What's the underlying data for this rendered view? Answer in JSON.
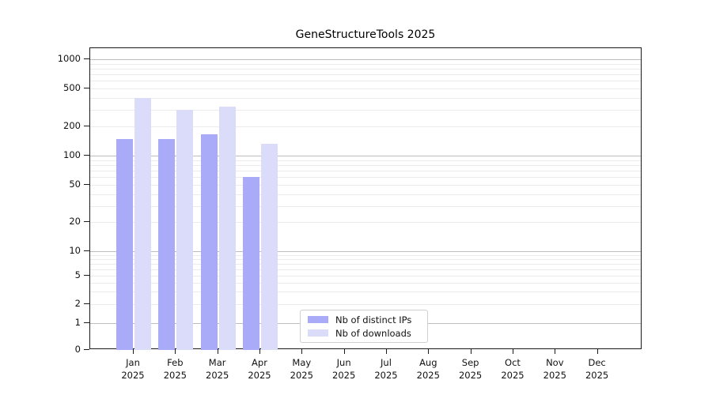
{
  "title": "GeneStructureTools 2025",
  "colors": {
    "distinct_ips": "#aaabf8",
    "downloads": "#dadcfa",
    "grid_major": "#bdbdbd",
    "grid_minor": "#ebebeb",
    "spine": "#1a1a1a"
  },
  "axes": {
    "y_tick_labels": [
      "1000",
      "500",
      "200",
      "100",
      "50",
      "20",
      "10",
      "5",
      "2",
      "1",
      "0"
    ],
    "x_year": "2025",
    "x_months": [
      "Jan",
      "Feb",
      "Mar",
      "Apr",
      "May",
      "Jun",
      "Jul",
      "Aug",
      "Sep",
      "Oct",
      "Nov",
      "Dec"
    ]
  },
  "legend": {
    "items": [
      {
        "label": "Nb of distinct IPs",
        "color": "#aaabf8"
      },
      {
        "label": "Nb of downloads",
        "color": "#dadcfa"
      }
    ]
  },
  "chart_data": {
    "type": "bar",
    "title": "GeneStructureTools 2025",
    "categories": [
      "Jan 2025",
      "Feb 2025",
      "Mar 2025",
      "Apr 2025",
      "May 2025",
      "Jun 2025",
      "Jul 2025",
      "Aug 2025",
      "Sep 2025",
      "Oct 2025",
      "Nov 2025",
      "Dec 2025"
    ],
    "series": [
      {
        "name": "Nb of distinct IPs",
        "color": "#aaabf8",
        "values": [
          150,
          148,
          166,
          60,
          null,
          null,
          null,
          null,
          null,
          null,
          null,
          null
        ]
      },
      {
        "name": "Nb of downloads",
        "color": "#dadcfa",
        "values": [
          400,
          300,
          320,
          133,
          null,
          null,
          null,
          null,
          null,
          null,
          null,
          null
        ]
      }
    ],
    "xlabel": "",
    "ylabel": "",
    "yscale": "log-with-zero",
    "yticks": [
      0,
      1,
      2,
      5,
      10,
      20,
      50,
      100,
      200,
      500,
      1000
    ],
    "ylim": [
      0,
      1400
    ],
    "grid": "horizontal",
    "legend_position": "inside-bottom-center"
  }
}
